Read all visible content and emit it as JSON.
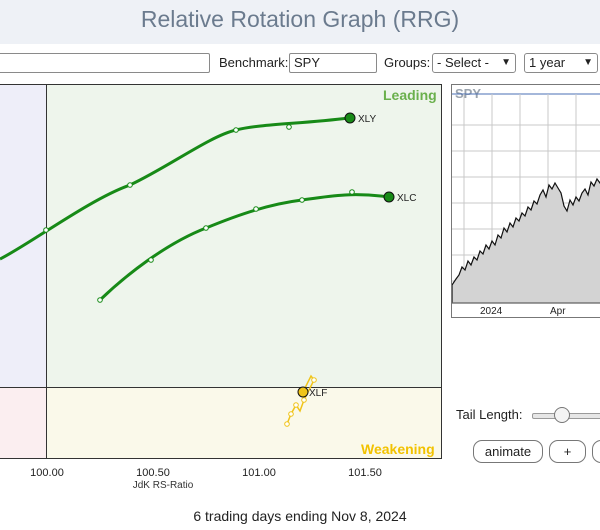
{
  "header": {
    "title": "Relative Rotation Graph (RRG)"
  },
  "toolbar": {
    "ticker_value": "",
    "benchmark_label": "Benchmark:",
    "benchmark_value": "SPY",
    "groups_label": "Groups:",
    "groups_value": "- Select -",
    "period_value": "1 year"
  },
  "rrg": {
    "quadrants": {
      "leading": "Leading",
      "weakening": "Weakening"
    },
    "x_ticks": [
      "100.00",
      "100.50",
      "101.00",
      "101.50"
    ],
    "x_title": "JdK RS-Ratio",
    "colors": {
      "leading": "#6ab04c",
      "weakening": "#f2c200",
      "tail_green": "#178a17",
      "tail_yellow": "#f0c419"
    },
    "series": [
      {
        "name": "XLY",
        "color": "#178a17"
      },
      {
        "name": "XLC",
        "color": "#178a17"
      },
      {
        "name": "XLF",
        "color": "#f0c419"
      }
    ]
  },
  "spy_chart": {
    "title": "SPY",
    "x_labels": [
      "2024",
      "Apr"
    ]
  },
  "controls": {
    "tail_length_label": "Tail Length:",
    "animate_label": "animate",
    "plus_label": "+"
  },
  "footer": {
    "caption": "6 trading days ending Nov 8, 2024"
  }
}
